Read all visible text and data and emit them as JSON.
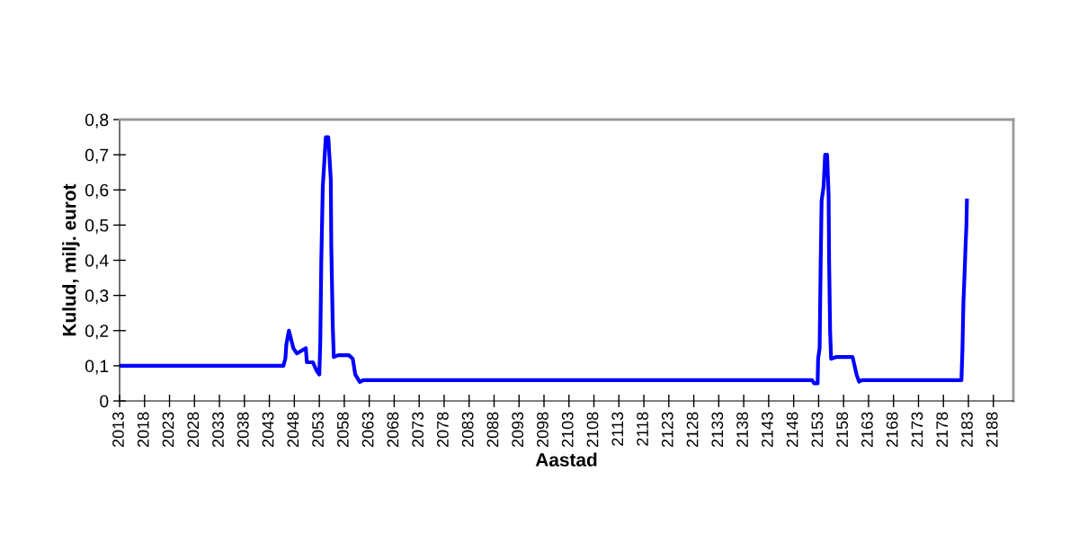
{
  "chart_data": {
    "type": "line",
    "xlabel": "Aastad",
    "ylabel": "Kulud, milj. eurot",
    "x": [
      2013,
      2045.8,
      2046.2,
      2046.4,
      2046.9,
      2047.8,
      2048.5,
      2050.3,
      2050.5,
      2051.7,
      2052.5,
      2053,
      2053.2,
      2053.4,
      2053.7,
      2054.3,
      2054.8,
      2055.3,
      2055.4,
      2055.7,
      2055.9,
      2056.8,
      2058.9,
      2059.7,
      2060.2,
      2061.1,
      2061.8,
      2151.7,
      2152.1,
      2152.8,
      2152.9,
      2153.2,
      2153.4,
      2153.6,
      2154,
      2154.3,
      2154.7,
      2155,
      2155.1,
      2155.3,
      2155.5,
      2156.6,
      2159.8,
      2160.2,
      2160.6,
      2161.1,
      2161.7,
      2181.6,
      2181.8,
      2182,
      2182.2,
      2182.4,
      2182.6,
      2182.7
    ],
    "series": [
      {
        "color": "#0000ff",
        "values": [
          0.1,
          0.1,
          0.12,
          0.16,
          0.2,
          0.15,
          0.135,
          0.15,
          0.11,
          0.11,
          0.085,
          0.075,
          0.17,
          0.4,
          0.61,
          0.75,
          0.75,
          0.63,
          0.44,
          0.21,
          0.125,
          0.13,
          0.13,
          0.12,
          0.075,
          0.054,
          0.059,
          0.059,
          0.05,
          0.05,
          0.12,
          0.15,
          0.38,
          0.57,
          0.61,
          0.7,
          0.7,
          0.585,
          0.4,
          0.2,
          0.12,
          0.125,
          0.125,
          0.1,
          0.075,
          0.055,
          0.059,
          0.059,
          0.143,
          0.28,
          0.35,
          0.43,
          0.5,
          0.57
        ]
      }
    ],
    "xlim": [
      2013,
      2192
    ],
    "xticks": [
      2013,
      2018,
      2023,
      2028,
      2033,
      2038,
      2043,
      2048,
      2053,
      2058,
      2063,
      2068,
      2073,
      2078,
      2083,
      2088,
      2093,
      2098,
      2103,
      2108,
      2113,
      2118,
      2123,
      2128,
      2133,
      2138,
      2143,
      2148,
      2153,
      2158,
      2163,
      2168,
      2173,
      2178,
      2183,
      2188
    ],
    "ylim": [
      0,
      0.8
    ],
    "yticks": [
      0,
      {
        "value": 0.1,
        "label": "0,1"
      },
      {
        "value": 0.2,
        "label": "0,2"
      },
      {
        "value": 0.3,
        "label": "0,3"
      },
      {
        "value": 0.4,
        "label": "0,4"
      },
      {
        "value": 0.5,
        "label": "0,5"
      },
      {
        "value": 0.6,
        "label": "0,6"
      },
      {
        "value": 0.7,
        "label": "0,7"
      },
      {
        "value": 0.8,
        "label": "0,8"
      }
    ],
    "grid": false,
    "legend": false,
    "marker": "none",
    "line_style": "solid"
  }
}
